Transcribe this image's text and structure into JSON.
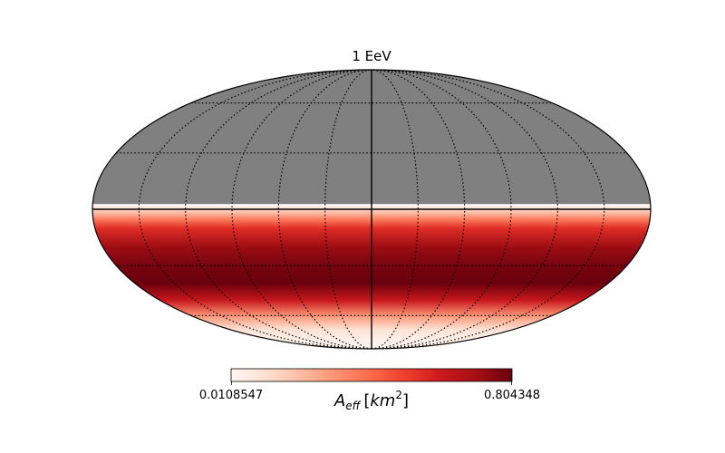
{
  "chart_data": {
    "type": "heatmap",
    "projection": "mollweide",
    "title": "1 EeV",
    "colormap": "Reds",
    "masked_color": "#808080",
    "colorbar": {
      "min": 0.0108547,
      "max": 0.804348,
      "min_label": "0.0108547",
      "max_label": "0.804348",
      "label_main": "A",
      "label_sub": "eff",
      "label_unit_base": "km",
      "label_unit_exp": "2"
    },
    "grid": true,
    "latitude_profile": {
      "lat_deg": [
        -90,
        -80,
        -70,
        -60,
        -50,
        -40,
        -30,
        -20,
        -10,
        -5,
        0,
        2,
        3,
        90
      ],
      "value": [
        0.0108547,
        0.03,
        0.1,
        0.3,
        0.62,
        0.8,
        0.78,
        0.72,
        0.55,
        0.35,
        0.12,
        0.03,
        null,
        null
      ]
    },
    "colors": {
      "reds": [
        "#fff5f0",
        "#fee0d2",
        "#fcbba1",
        "#fc9272",
        "#fb6a4a",
        "#ef3b2c",
        "#cb181d",
        "#a50f15",
        "#67000d"
      ]
    }
  }
}
